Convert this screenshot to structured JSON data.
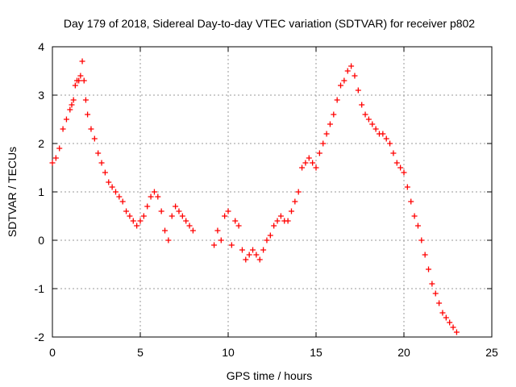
{
  "chart_data": {
    "type": "scatter",
    "title": "Day 179 of 2018, Sidereal Day-to-day VTEC variation (SDTVAR) for receiver p802",
    "xlabel": "GPS time / hours",
    "ylabel": "SDTVAR / TECUs",
    "xlim": [
      0,
      25
    ],
    "ylim": [
      -2,
      4
    ],
    "xticks": [
      0,
      5,
      10,
      15,
      20,
      25
    ],
    "yticks": [
      -2,
      -1,
      0,
      1,
      2,
      3,
      4
    ],
    "xtick_labels": [
      "0",
      "5",
      "10",
      "15",
      "20",
      "25"
    ],
    "ytick_labels": [
      "-2",
      "-1",
      "0",
      "1",
      "2",
      "3",
      "4"
    ],
    "grid": true,
    "marker": "+",
    "color": "#ff0000",
    "series": [
      {
        "name": "SDTVAR",
        "x": [
          0.0,
          0.2,
          0.4,
          0.6,
          0.8,
          1.0,
          1.1,
          1.2,
          1.3,
          1.4,
          1.5,
          1.6,
          1.7,
          1.8,
          1.9,
          2.0,
          2.2,
          2.4,
          2.6,
          2.8,
          3.0,
          3.2,
          3.4,
          3.6,
          3.8,
          4.0,
          4.2,
          4.4,
          4.6,
          4.8,
          5.0,
          5.2,
          5.4,
          5.6,
          5.8,
          6.0,
          6.2,
          6.4,
          6.6,
          6.8,
          7.0,
          7.2,
          7.4,
          7.6,
          7.8,
          8.0,
          9.2,
          9.4,
          9.6,
          9.8,
          10.0,
          10.2,
          10.4,
          10.6,
          10.8,
          11.0,
          11.2,
          11.4,
          11.6,
          11.8,
          12.0,
          12.2,
          12.4,
          12.6,
          12.8,
          13.0,
          13.2,
          13.4,
          13.6,
          13.8,
          14.0,
          14.2,
          14.4,
          14.6,
          14.8,
          15.0,
          15.2,
          15.4,
          15.6,
          15.8,
          16.0,
          16.2,
          16.4,
          16.6,
          16.8,
          17.0,
          17.2,
          17.4,
          17.6,
          17.8,
          18.0,
          18.2,
          18.4,
          18.6,
          18.8,
          19.0,
          19.2,
          19.4,
          19.6,
          19.8,
          20.0,
          20.2,
          20.4,
          20.6,
          20.8,
          21.0,
          21.2,
          21.4,
          21.6,
          21.8,
          22.0,
          22.2,
          22.4,
          22.6,
          22.8,
          23.0
        ],
        "y": [
          1.6,
          1.7,
          1.9,
          2.3,
          2.5,
          2.7,
          2.8,
          2.9,
          3.2,
          3.3,
          3.3,
          3.4,
          3.7,
          3.3,
          2.9,
          2.6,
          2.3,
          2.1,
          1.8,
          1.6,
          1.4,
          1.2,
          1.1,
          1.0,
          0.9,
          0.8,
          0.6,
          0.5,
          0.4,
          0.3,
          0.4,
          0.5,
          0.7,
          0.9,
          1.0,
          0.9,
          0.6,
          0.2,
          0.0,
          0.5,
          0.7,
          0.6,
          0.5,
          0.4,
          0.3,
          0.2,
          -0.1,
          0.2,
          0.0,
          0.5,
          0.6,
          -0.1,
          0.4,
          0.3,
          -0.2,
          -0.4,
          -0.3,
          -0.2,
          -0.3,
          -0.4,
          -0.2,
          0.0,
          0.1,
          0.3,
          0.4,
          0.5,
          0.4,
          0.4,
          0.6,
          0.8,
          1.0,
          1.5,
          1.6,
          1.7,
          1.6,
          1.5,
          1.8,
          2.0,
          2.2,
          2.4,
          2.6,
          2.9,
          3.2,
          3.3,
          3.5,
          3.6,
          3.4,
          3.1,
          2.8,
          2.6,
          2.5,
          2.4,
          2.3,
          2.2,
          2.2,
          2.1,
          2.0,
          1.8,
          1.6,
          1.5,
          1.4,
          1.1,
          0.8,
          0.5,
          0.3,
          0.0,
          -0.3,
          -0.6,
          -0.9,
          -1.1,
          -1.3,
          -1.5,
          -1.6,
          -1.7,
          -1.8,
          -1.9
        ]
      }
    ]
  }
}
